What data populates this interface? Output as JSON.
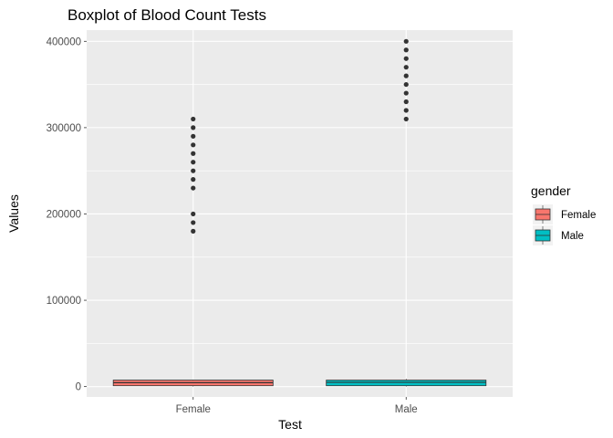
{
  "chart_data": {
    "type": "boxplot",
    "title": "Boxplot of Blood Count Tests",
    "xlabel": "Test",
    "ylabel": "Values",
    "categories": [
      "Female",
      "Male"
    ],
    "ylim": [
      -12000,
      413000
    ],
    "yticks": [
      0,
      100000,
      200000,
      300000,
      400000
    ],
    "ytick_labels": [
      "0",
      "100000",
      "200000",
      "300000",
      "400000"
    ],
    "grid": true,
    "legend": {
      "title": "gender",
      "position": "right",
      "entries": [
        "Female",
        "Male"
      ]
    },
    "series": [
      {
        "name": "Female",
        "color": "#F8766D",
        "box": {
          "min": 0,
          "q1": 1000,
          "median": 4500,
          "q3": 7500,
          "max": 8000
        },
        "outliers": [
          180000,
          190000,
          200000,
          230000,
          240000,
          250000,
          260000,
          270000,
          280000,
          290000,
          300000,
          310000
        ]
      },
      {
        "name": "Male",
        "color": "#00BFC4",
        "box": {
          "min": 0,
          "q1": 1000,
          "median": 5000,
          "q3": 7500,
          "max": 9000
        },
        "outliers": [
          310000,
          320000,
          330000,
          340000,
          350000,
          360000,
          370000,
          380000,
          390000,
          400000
        ]
      }
    ]
  }
}
